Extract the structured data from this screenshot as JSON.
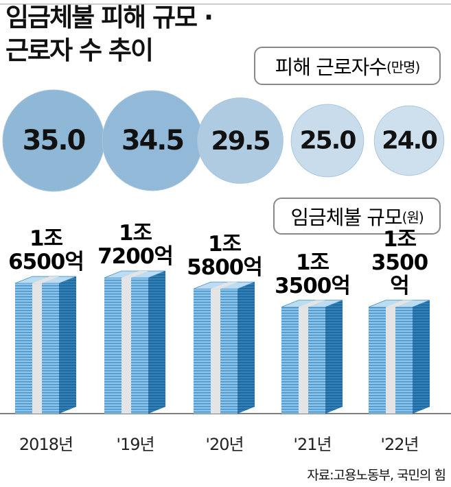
{
  "title": "임금체불 피해 규모 ·\n근로자 수 추이",
  "source": "자료:고용노동부, 국민의 힘",
  "chart_data": [
    {
      "type": "bubble",
      "title": "피해 근로자수",
      "unit": "(만명)",
      "values": [
        35.0,
        34.5,
        29.5,
        25.0,
        24.0
      ],
      "value_labels": [
        "35.0",
        "34.5",
        "29.5",
        "25.0",
        "24.0"
      ],
      "color": "#8fb7d6"
    },
    {
      "type": "bar",
      "title": "임금체불 규모",
      "unit": "(원)",
      "categories": [
        "2018년",
        "'19년",
        "'20년",
        "'21년",
        "'22년"
      ],
      "values": [
        16500,
        17200,
        15800,
        13500,
        13500
      ],
      "value_labels": [
        "1조\n6500억",
        "1조\n7200억",
        "1조\n5800억",
        "1조\n3500억",
        "1조\n3500억"
      ],
      "color": "#3f8ec8"
    }
  ]
}
